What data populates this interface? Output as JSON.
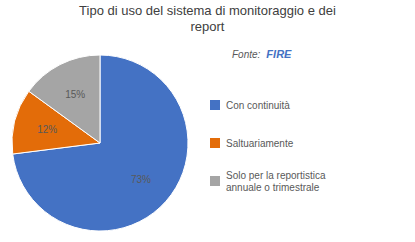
{
  "chart_data": {
    "type": "pie",
    "title": "Tipo di uso del sistema di monitoraggio e dei\nreport",
    "categories": [
      "Con continuità",
      "Saltuariamente",
      "Solo per la reportistica\nannuale o trimestrale"
    ],
    "values": [
      73,
      12,
      15
    ],
    "value_labels": [
      "73%",
      "12%",
      "15%"
    ],
    "colors": [
      "#4472C4",
      "#E36C09",
      "#A5A5A5"
    ],
    "data_labels": true,
    "legend": "right",
    "annotations": [
      "Fonte:",
      "FIRE"
    ]
  }
}
